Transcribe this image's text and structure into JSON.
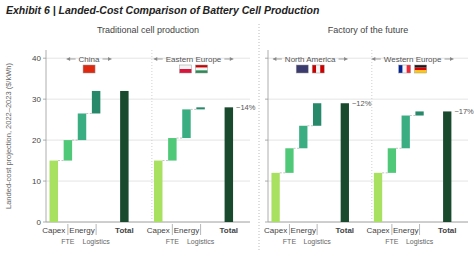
{
  "chart_data": {
    "type": "waterfall",
    "title": "Exhibit 6 | Landed-Cost Comparison of Battery Cell Production",
    "ylabel": "Landed-cost projection, 2022–2023 ($/kWh)",
    "ylim": [
      0,
      42
    ],
    "yticks": [
      0,
      10,
      20,
      30,
      40
    ],
    "grid": true,
    "categories": [
      "Capex",
      "FTE",
      "Energy",
      "Logistics",
      "Total"
    ],
    "colors": [
      "#a8e060",
      "#4fc878",
      "#3aae82",
      "#27886a",
      "#1a4a2e"
    ],
    "panels": [
      {
        "subtitle": "Traditional cell production",
        "series": [
          {
            "name": "China",
            "values": [
              15,
              5,
              6.5,
              5.5,
              32
            ]
          },
          {
            "name": "Eastern Europe",
            "values": [
              15,
              5.5,
              7,
              0.5,
              28
            ],
            "annotation": "~14%"
          }
        ]
      },
      {
        "subtitle": "Factory of the future",
        "tick_labels": "x",
        "series": [
          {
            "name": "North America",
            "values": [
              12,
              6,
              5.5,
              5.5,
              29
            ],
            "annotation": "~12%"
          },
          {
            "name": "Western Europe",
            "values": [
              12,
              6,
              8,
              1,
              27
            ],
            "annotation": "~17%"
          }
        ]
      }
    ]
  }
}
